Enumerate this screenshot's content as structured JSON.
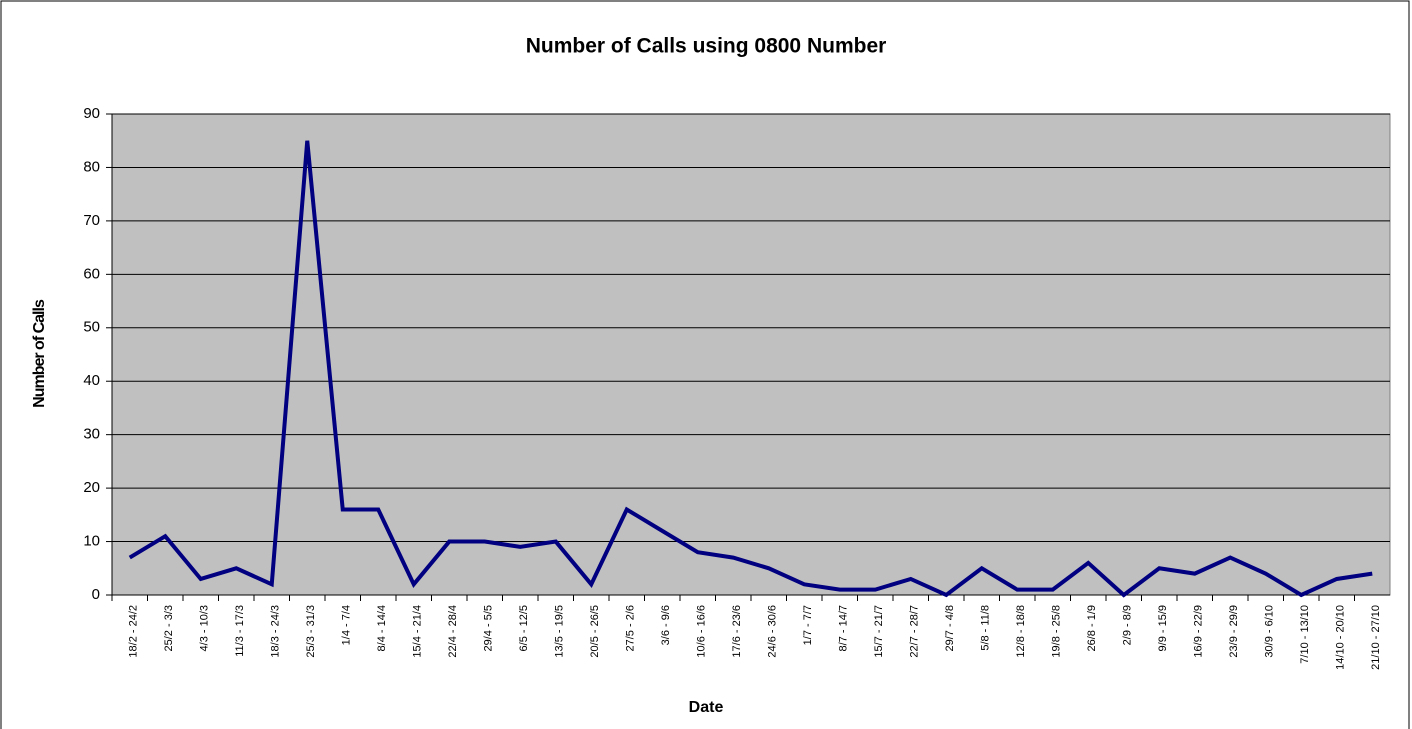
{
  "chart_data": {
    "type": "line",
    "title": "Number of Calls using 0800 Number",
    "x_label": "Date",
    "y_label": "Number of Calls",
    "categories": [
      "18/2 - 24/2",
      "25/2 - 3/3",
      "4/3 - 10/3",
      "11/3 - 17/3",
      "18/3 - 24/3",
      "25/3 - 31/3",
      "1/4 - 7/4",
      "8/4 - 14/4",
      "15/4 - 21/4",
      "22/4 - 28/4",
      "29/4 - 5/5",
      "6/5 - 12/5",
      "13/5 - 19/5",
      "20/5 - 26/5",
      "27/5 - 2/6",
      "3/6 - 9/6",
      "10/6 - 16/6",
      "17/6 - 23/6",
      "24/6 - 30/6",
      "1/7 - 7/7",
      "8/7 - 14/7",
      "15/7 - 21/7",
      "22/7 - 28/7",
      "29/7 - 4/8",
      "5/8 - 11/8",
      "12/8 - 18/8",
      "19/8 - 25/8",
      "26/8 - 1/9",
      "2/9 - 8/9",
      "9/9 - 15/9",
      "16/9 - 22/9",
      "23/9 - 29/9",
      "30/9 - 6/10",
      "7/10 - 13/10",
      "14/10 - 20/10",
      "21/10 - 27/10"
    ],
    "values": [
      7,
      11,
      3,
      5,
      2,
      85,
      16,
      16,
      2,
      10,
      10,
      9,
      10,
      2,
      16,
      12,
      8,
      7,
      5,
      2,
      1,
      1,
      3,
      0,
      5,
      1,
      1,
      6,
      0,
      5,
      4,
      7,
      4,
      0,
      3,
      4
    ],
    "color": "#000080",
    "ylim": [
      0,
      90
    ],
    "yticks": [
      0,
      10,
      20,
      30,
      40,
      50,
      60,
      70,
      80,
      90
    ],
    "grid": true
  }
}
